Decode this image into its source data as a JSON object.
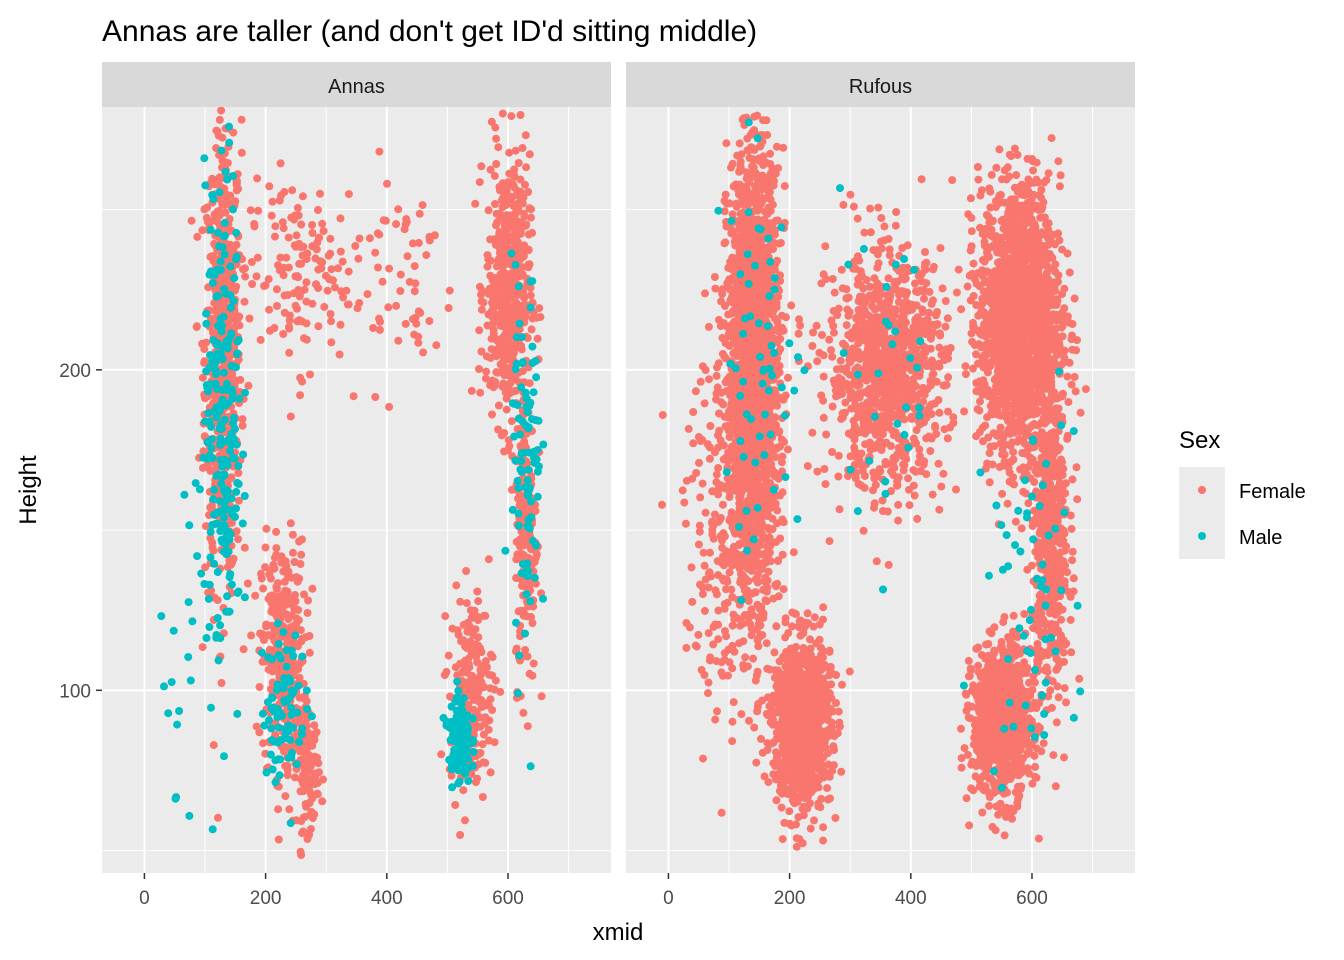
{
  "chart_data": {
    "type": "scatter",
    "title": "Annas are taller (and don't get ID'd sitting middle)",
    "xlabel": "xmid",
    "ylabel": "Height",
    "xlim": [
      -70,
      770
    ],
    "ylim": [
      43,
      282
    ],
    "x_ticks": [
      0,
      200,
      400,
      600
    ],
    "y_ticks": [
      100,
      200
    ],
    "grid": true,
    "legend": {
      "title": "Sex",
      "position": "right",
      "entries": [
        {
          "name": "Female",
          "color": "#F8766D"
        },
        {
          "name": "Male",
          "color": "#00BFC4"
        }
      ]
    },
    "facets": [
      {
        "label": "Annas",
        "point_clusters": [
          {
            "series": "Female",
            "x_center": 130,
            "y_center": 205,
            "x_spread": 25,
            "y_spread": 60,
            "n": 700
          },
          {
            "series": "Female",
            "x_center": 230,
            "y_center": 110,
            "x_spread": 30,
            "y_spread": 30,
            "n": 350
          },
          {
            "series": "Female",
            "x_center": 270,
            "y_center": 75,
            "x_spread": 15,
            "y_spread": 15,
            "n": 120
          },
          {
            "series": "Female",
            "x_center": 600,
            "y_center": 225,
            "x_spread": 30,
            "y_spread": 35,
            "n": 500
          },
          {
            "series": "Female",
            "x_center": 630,
            "y_center": 150,
            "x_spread": 15,
            "y_spread": 40,
            "n": 200
          },
          {
            "series": "Female",
            "x_center": 540,
            "y_center": 100,
            "x_spread": 30,
            "y_spread": 25,
            "n": 200
          },
          {
            "series": "Female",
            "x_center": 250,
            "y_center": 230,
            "x_spread": 70,
            "y_spread": 25,
            "n": 140
          },
          {
            "series": "Female",
            "x_center": 420,
            "y_center": 230,
            "x_spread": 80,
            "y_spread": 30,
            "n": 60
          },
          {
            "series": "Male",
            "x_center": 130,
            "y_center": 190,
            "x_spread": 25,
            "y_spread": 60,
            "n": 200
          },
          {
            "series": "Male",
            "x_center": 230,
            "y_center": 95,
            "x_spread": 30,
            "y_spread": 20,
            "n": 80
          },
          {
            "series": "Male",
            "x_center": 520,
            "y_center": 85,
            "x_spread": 15,
            "y_spread": 12,
            "n": 120
          },
          {
            "series": "Male",
            "x_center": 630,
            "y_center": 170,
            "x_spread": 20,
            "y_spread": 50,
            "n": 90
          },
          {
            "series": "Male",
            "x_center": 100,
            "y_center": 130,
            "x_spread": 60,
            "y_spread": 45,
            "n": 40
          }
        ]
      },
      {
        "label": "Rufous",
        "point_clusters": [
          {
            "series": "Female",
            "x_center": 140,
            "y_center": 200,
            "x_spread": 35,
            "y_spread": 55,
            "n": 2200
          },
          {
            "series": "Female",
            "x_center": 220,
            "y_center": 90,
            "x_spread": 40,
            "y_spread": 22,
            "n": 1000
          },
          {
            "series": "Female",
            "x_center": 580,
            "y_center": 215,
            "x_spread": 55,
            "y_spread": 35,
            "n": 1800
          },
          {
            "series": "Female",
            "x_center": 630,
            "y_center": 145,
            "x_spread": 25,
            "y_spread": 40,
            "n": 500
          },
          {
            "series": "Female",
            "x_center": 550,
            "y_center": 90,
            "x_spread": 40,
            "y_spread": 20,
            "n": 900
          },
          {
            "series": "Female",
            "x_center": 360,
            "y_center": 200,
            "x_spread": 80,
            "y_spread": 30,
            "n": 1000
          },
          {
            "series": "Female",
            "x_center": 100,
            "y_center": 150,
            "x_spread": 60,
            "y_spread": 50,
            "n": 250
          },
          {
            "series": "Male",
            "x_center": 150,
            "y_center": 200,
            "x_spread": 60,
            "y_spread": 50,
            "n": 60
          },
          {
            "series": "Male",
            "x_center": 600,
            "y_center": 130,
            "x_spread": 60,
            "y_spread": 50,
            "n": 60
          },
          {
            "series": "Male",
            "x_center": 350,
            "y_center": 200,
            "x_spread": 100,
            "y_spread": 40,
            "n": 30
          }
        ]
      }
    ]
  }
}
